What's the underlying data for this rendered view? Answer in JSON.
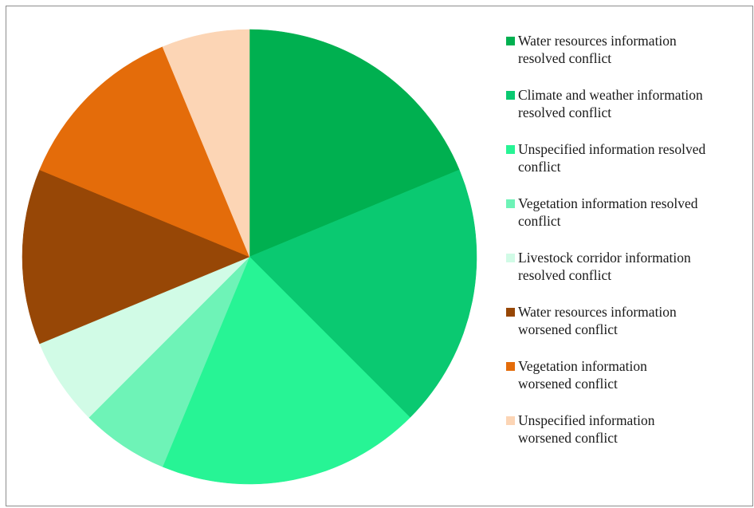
{
  "chart_data": {
    "type": "pie",
    "title": "",
    "slices": [
      {
        "label": "Water resources information\nresolved conflict",
        "value": 18.75,
        "color": "#00b050"
      },
      {
        "label": "Climate and weather information\nresolved conflict",
        "value": 18.75,
        "color": "#0ac971"
      },
      {
        "label": "Unspecified information resolved\nconflict",
        "value": 18.75,
        "color": "#27f495"
      },
      {
        "label": "Vegetation information resolved\nconflict",
        "value": 6.25,
        "color": "#6ef3b7"
      },
      {
        "label": "Livestock corridor information\nresolved conflict",
        "value": 6.25,
        "color": "#d1fbe6"
      },
      {
        "label": "Water resources information\nworsened conflict",
        "value": 12.5,
        "color": "#974706"
      },
      {
        "label": "Vegetation  information\nworsened conflict",
        "value": 12.5,
        "color": "#e46c0a"
      },
      {
        "label": "Unspecified information\nworsened conflict",
        "value": 6.25,
        "color": "#fcd5b5"
      }
    ],
    "legend_position": "right",
    "start_angle": "12 o'clock",
    "direction": "clockwise"
  }
}
